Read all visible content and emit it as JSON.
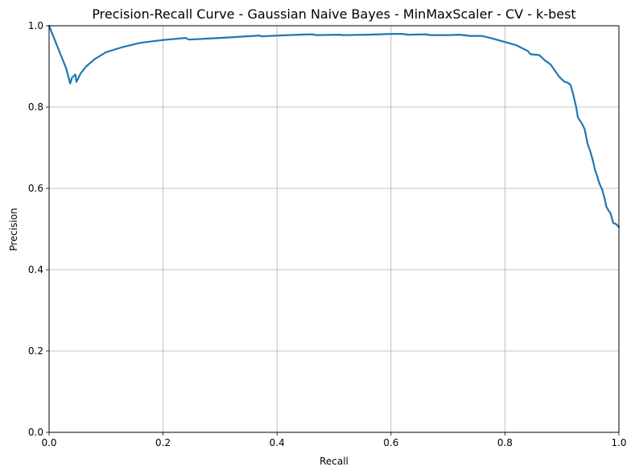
{
  "chart_data": {
    "type": "line",
    "title": "Precision-Recall Curve - Gaussian Naive Bayes - MinMaxScaler - CV - k-best",
    "xlabel": "Recall",
    "ylabel": "Precision",
    "xlim": [
      0,
      1
    ],
    "ylim": [
      0,
      1
    ],
    "grid": true,
    "xticks": [
      "0.0",
      "0.2",
      "0.4",
      "0.6",
      "0.8",
      "1.0"
    ],
    "yticks": [
      "0.0",
      "0.2",
      "0.4",
      "0.6",
      "0.8",
      "1.0"
    ],
    "line_color": "#1f77b4",
    "series": [
      {
        "x": [
          0.0,
          0.01,
          0.02,
          0.03,
          0.037,
          0.04,
          0.046,
          0.048,
          0.055,
          0.065,
          0.08,
          0.1,
          0.13,
          0.16,
          0.2,
          0.24,
          0.245,
          0.3,
          0.37,
          0.372,
          0.42,
          0.46,
          0.47,
          0.51,
          0.515,
          0.56,
          0.6,
          0.62,
          0.63,
          0.66,
          0.67,
          0.7,
          0.72,
          0.74,
          0.76,
          0.78,
          0.8,
          0.82,
          0.83,
          0.84,
          0.845,
          0.86,
          0.87,
          0.875,
          0.88,
          0.885,
          0.89,
          0.895,
          0.9,
          0.905,
          0.91,
          0.915,
          0.92,
          0.925,
          0.928,
          0.93,
          0.935,
          0.94,
          0.945,
          0.95,
          0.955,
          0.958,
          0.962,
          0.965,
          0.968,
          0.97,
          0.975,
          0.978,
          0.982,
          0.985,
          0.988,
          0.99,
          0.995,
          1.0
        ],
        "y": [
          1.0,
          0.965,
          0.93,
          0.895,
          0.858,
          0.872,
          0.88,
          0.862,
          0.882,
          0.9,
          0.918,
          0.935,
          0.948,
          0.958,
          0.965,
          0.97,
          0.966,
          0.97,
          0.976,
          0.974,
          0.977,
          0.979,
          0.977,
          0.978,
          0.977,
          0.978,
          0.98,
          0.98,
          0.978,
          0.979,
          0.977,
          0.977,
          0.978,
          0.975,
          0.975,
          0.968,
          0.96,
          0.952,
          0.945,
          0.938,
          0.93,
          0.928,
          0.915,
          0.91,
          0.905,
          0.895,
          0.885,
          0.875,
          0.868,
          0.862,
          0.86,
          0.855,
          0.83,
          0.8,
          0.775,
          0.77,
          0.76,
          0.745,
          0.71,
          0.69,
          0.665,
          0.645,
          0.63,
          0.615,
          0.605,
          0.6,
          0.575,
          0.555,
          0.545,
          0.54,
          0.525,
          0.515,
          0.512,
          0.505
        ]
      }
    ]
  }
}
